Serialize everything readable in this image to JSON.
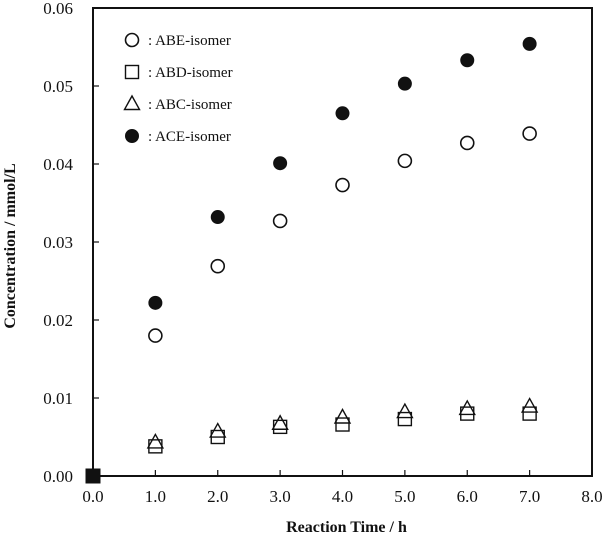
{
  "chart_data": {
    "type": "scatter",
    "xlabel": "Reaction Time / h",
    "ylabel": "Concentration / mmol/L",
    "xlim": [
      0,
      8
    ],
    "ylim": [
      0,
      0.06
    ],
    "x_ticks": [
      "0.0",
      "1.0",
      "2.0",
      "3.0",
      "4.0",
      "5.0",
      "6.0",
      "7.0",
      "8.0"
    ],
    "y_ticks": [
      "0.00",
      "0.01",
      "0.02",
      "0.03",
      "0.04",
      "0.05",
      "0.06"
    ],
    "grid": false,
    "legend_position": "top-left",
    "series": [
      {
        "name": ": ABE-isomer",
        "marker": "open-circle",
        "x": [
          0,
          1,
          2,
          3,
          4,
          5,
          6,
          7
        ],
        "y": [
          0,
          0.018,
          0.0269,
          0.0327,
          0.0373,
          0.0404,
          0.0427,
          0.0439
        ]
      },
      {
        "name": ": ABD-isomer",
        "marker": "open-square",
        "x": [
          0,
          1,
          2,
          3,
          4,
          5,
          6,
          7
        ],
        "y": [
          0,
          0.0038,
          0.005,
          0.0063,
          0.0066,
          0.0073,
          0.008,
          0.008
        ]
      },
      {
        "name": ": ABC-isomer",
        "marker": "open-triangle",
        "x": [
          0,
          1,
          2,
          3,
          4,
          5,
          6,
          7
        ],
        "y": [
          0,
          0.0043,
          0.0057,
          0.0067,
          0.0075,
          0.0082,
          0.0086,
          0.0089
        ]
      },
      {
        "name": ": ACE-isomer",
        "marker": "filled-circle",
        "x": [
          0,
          1,
          2,
          3,
          4,
          5,
          6,
          7
        ],
        "y": [
          0,
          0.0222,
          0.0332,
          0.0401,
          0.0465,
          0.0503,
          0.0533,
          0.0554
        ]
      }
    ],
    "origin_marker": "filled-square"
  }
}
